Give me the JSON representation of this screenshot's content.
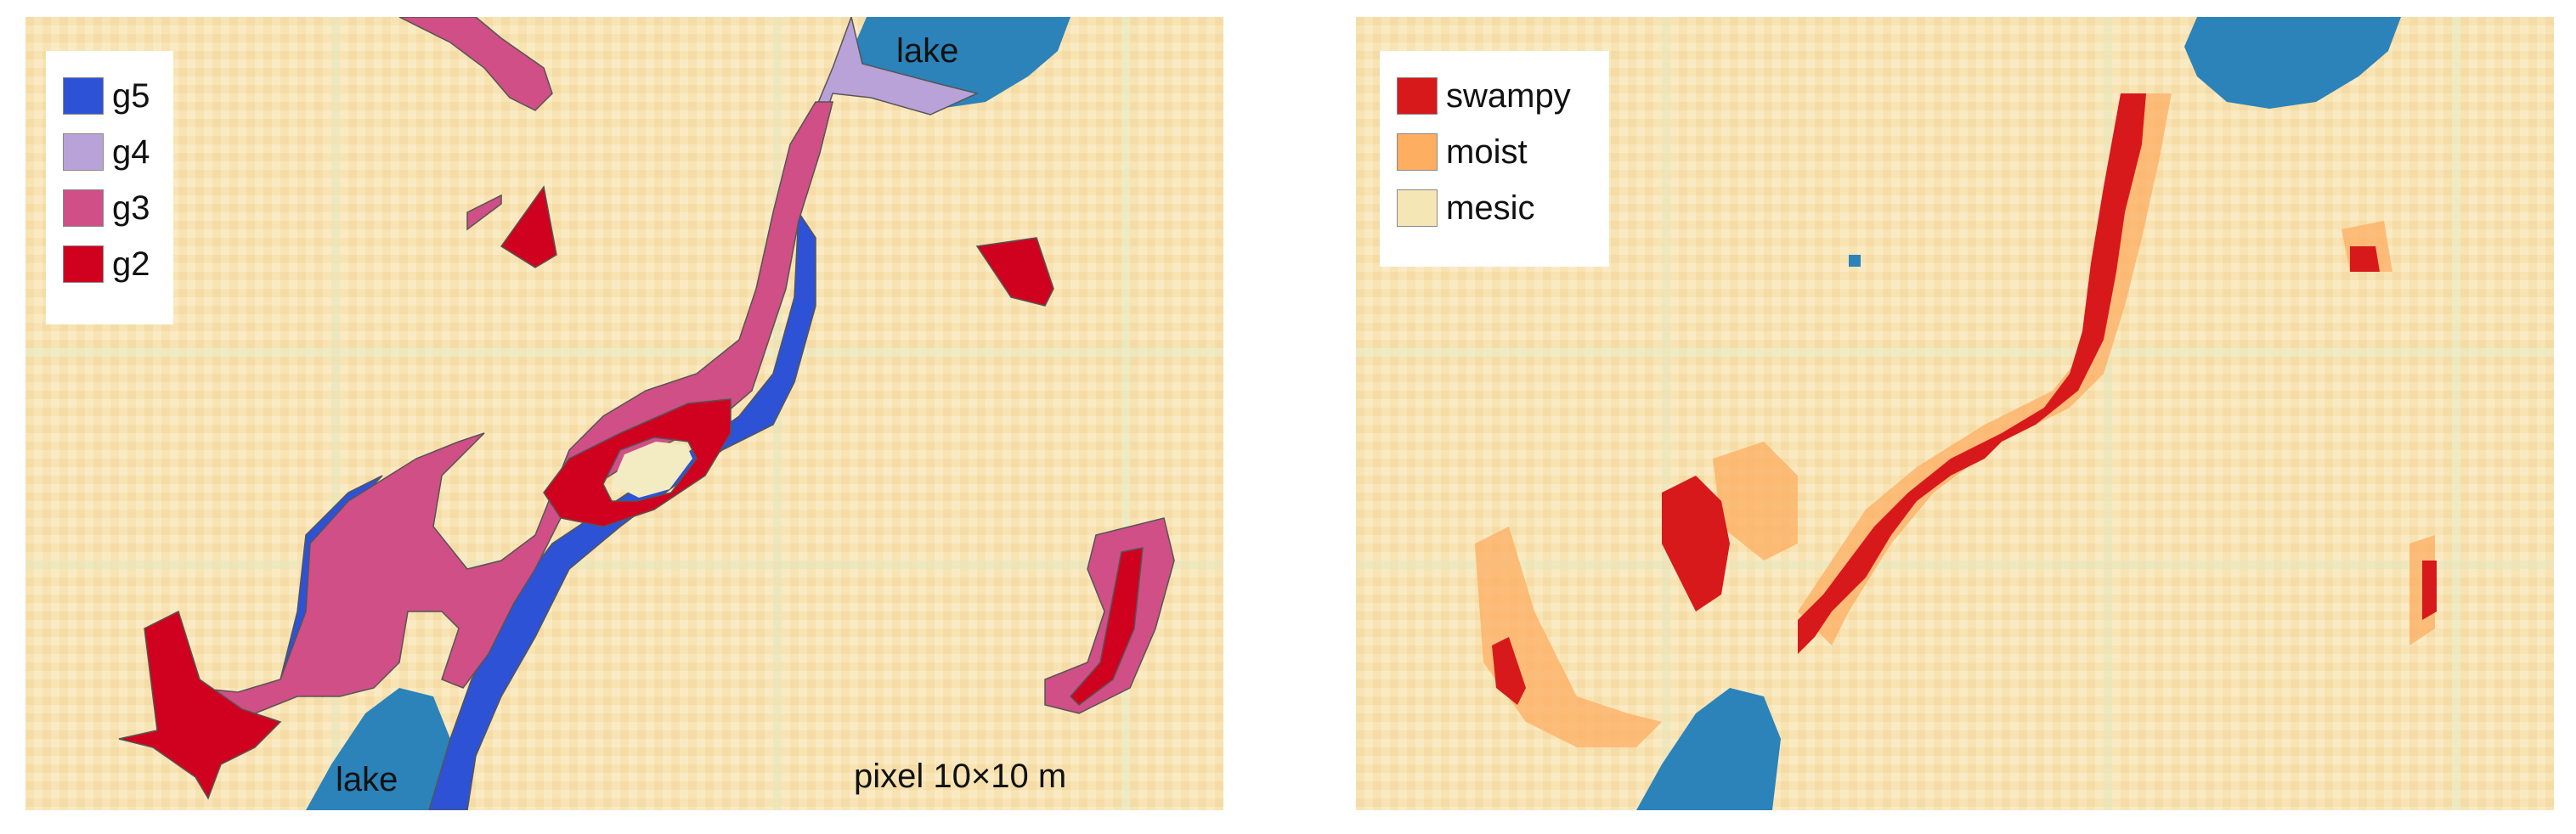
{
  "left_panel": {
    "legend": [
      {
        "label": "g5",
        "color": "#2e52d6"
      },
      {
        "label": "g4",
        "color": "#b9a2d8"
      },
      {
        "label": "g3",
        "color": "#cf4f86"
      },
      {
        "label": "g2",
        "color": "#d0001f"
      }
    ],
    "lake_top_label": "lake",
    "lake_bottom_label": "lake",
    "scale_note": "pixel 10×10 m"
  },
  "right_panel": {
    "legend": [
      {
        "label": "swampy",
        "color": "#d7191c"
      },
      {
        "label": "moist",
        "color": "#fdae61"
      },
      {
        "label": "mesic",
        "color": "#f5e6b5"
      }
    ]
  },
  "colors": {
    "lake": "#2b83ba",
    "background": "#f8e3b3",
    "wetter_tint": "#dcecc5"
  }
}
